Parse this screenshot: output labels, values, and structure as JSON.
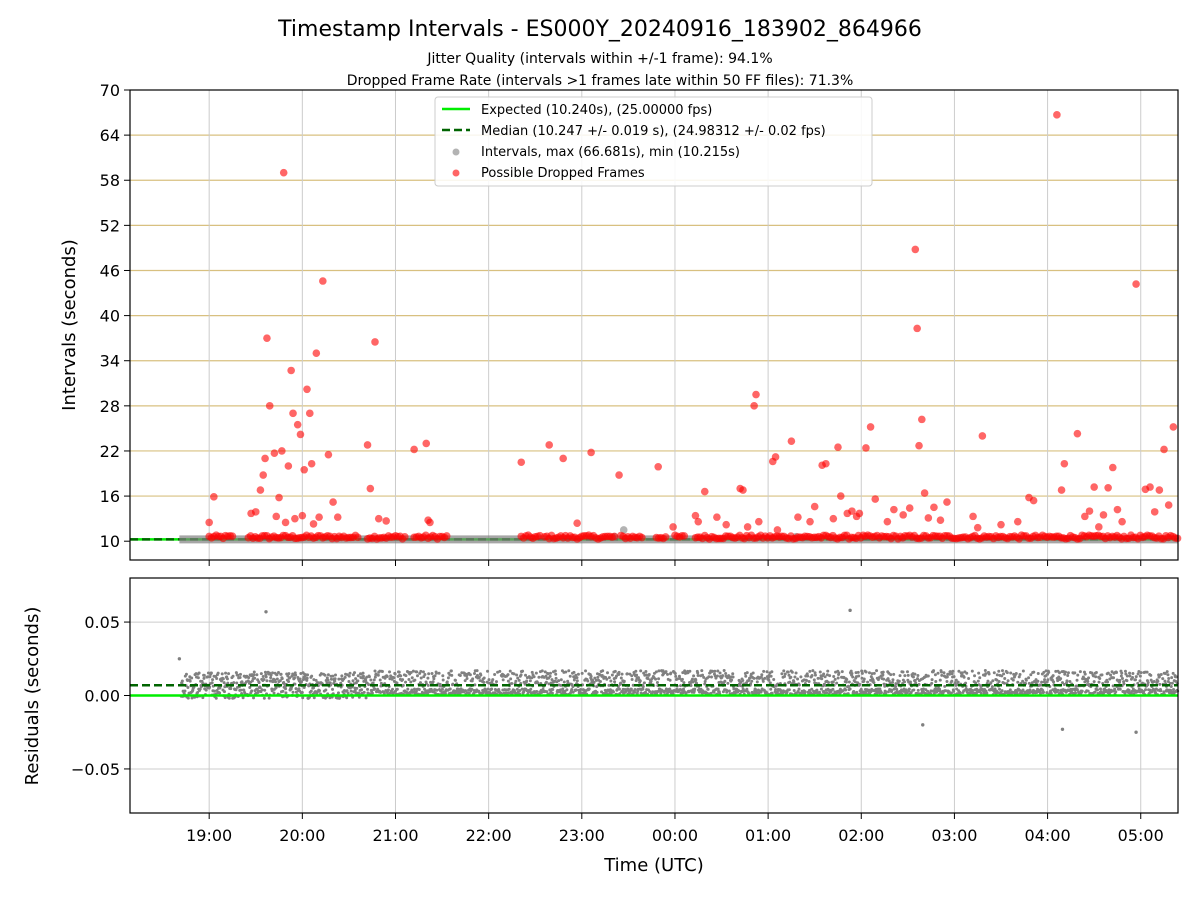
{
  "chart_data": [
    {
      "type": "scatter",
      "title": "Timestamp Intervals - ES000Y_20240916_183902_864966",
      "subtitle_1": "Jitter Quality (intervals within +/-1 frame): 94.1%",
      "subtitle_2": "Dropped Frame Rate (intervals >1 frames late within 50 FF files): 71.3%",
      "ylabel": "Intervals (seconds)",
      "ylim": [
        7.5,
        70
      ],
      "yticks": [
        "10",
        "16",
        "22",
        "28",
        "34",
        "40",
        "46",
        "52",
        "58",
        "64",
        "70"
      ],
      "xlim": [
        18.15,
        29.4
      ],
      "legend_position": "top-center",
      "legend": [
        "Expected (10.240s), (25.00000 fps)",
        "Median (10.247 +/- 0.019 s), (24.98312 +/- 0.02 fps)",
        "Intervals, max (66.681s), min (10.215s)",
        "Possible Dropped Frames"
      ],
      "expected": 10.24,
      "median": 10.247,
      "series": [
        {
          "name": "Possible Dropped Frames",
          "color": "#ff0000",
          "x": [
            19.0,
            19.05,
            19.45,
            19.5,
            19.55,
            19.58,
            19.6,
            19.62,
            19.65,
            19.7,
            19.72,
            19.75,
            19.78,
            19.8,
            19.82,
            19.85,
            19.88,
            19.9,
            19.92,
            19.95,
            19.98,
            20.0,
            20.02,
            20.05,
            20.08,
            20.1,
            20.12,
            20.15,
            20.18,
            20.22,
            20.28,
            20.33,
            20.38,
            20.7,
            20.73,
            20.78,
            20.82,
            20.9,
            21.2,
            21.33,
            21.35,
            21.37,
            22.35,
            22.65,
            22.8,
            22.95,
            23.1,
            23.4,
            23.82,
            23.98,
            24.22,
            24.25,
            24.32,
            24.45,
            24.55,
            24.7,
            24.73,
            24.78,
            24.85,
            24.87,
            24.9,
            25.05,
            25.08,
            25.1,
            25.25,
            25.32,
            25.45,
            25.5,
            25.58,
            25.62,
            25.7,
            25.75,
            25.78,
            25.85,
            25.9,
            25.95,
            25.98,
            26.05,
            26.1,
            26.15,
            26.28,
            26.35,
            26.45,
            26.52,
            26.58,
            26.6,
            26.62,
            26.65,
            26.68,
            26.72,
            26.78,
            26.85,
            26.92,
            27.2,
            27.25,
            27.3,
            27.5,
            27.68,
            27.8,
            27.85,
            28.1,
            28.15,
            28.18,
            28.32,
            28.4,
            28.45,
            28.5,
            28.55,
            28.6,
            28.65,
            28.7,
            28.75,
            28.8,
            28.95,
            29.05,
            29.1,
            29.15,
            29.2,
            29.25,
            29.3,
            29.35
          ],
          "y": [
            12.5,
            15.9,
            13.7,
            13.9,
            16.8,
            18.8,
            21.0,
            37.0,
            28.0,
            21.7,
            13.3,
            15.8,
            22.0,
            59.0,
            12.5,
            20.0,
            32.7,
            27.0,
            13.0,
            25.5,
            24.2,
            13.4,
            19.5,
            30.2,
            27.0,
            20.3,
            12.3,
            35.0,
            13.2,
            44.6,
            21.5,
            15.2,
            13.2,
            22.8,
            17.0,
            36.5,
            13.0,
            12.7,
            22.2,
            23.0,
            12.8,
            12.5,
            20.5,
            22.8,
            21.0,
            12.4,
            21.8,
            18.8,
            19.9,
            11.9,
            13.4,
            12.6,
            16.6,
            13.2,
            12.2,
            17.0,
            16.8,
            11.9,
            28.0,
            29.5,
            12.6,
            20.6,
            21.2,
            11.5,
            23.3,
            13.2,
            12.6,
            14.6,
            20.1,
            20.3,
            13.0,
            22.5,
            16.0,
            13.7,
            14.0,
            13.3,
            13.7,
            22.4,
            25.2,
            15.6,
            12.6,
            14.2,
            13.5,
            14.4,
            48.8,
            38.3,
            22.7,
            26.2,
            16.4,
            13.1,
            14.5,
            12.8,
            15.2,
            13.3,
            11.8,
            24.0,
            12.2,
            12.6,
            15.8,
            15.4,
            66.7,
            16.8,
            20.3,
            24.3,
            13.3,
            14.0,
            17.2,
            11.9,
            13.5,
            17.1,
            19.8,
            14.2,
            12.6,
            44.2,
            16.9,
            17.2,
            13.9,
            16.8,
            22.2,
            14.8,
            25.2
          ]
        },
        {
          "name": "Intervals, max (66.681s), min (10.215s)",
          "color": "#808080",
          "x": [
            23.45,
            23.35,
            25.3
          ],
          "y": [
            11.5,
            10.6,
            10.6
          ]
        }
      ]
    },
    {
      "type": "scatter",
      "ylabel": "Residuals (seconds)",
      "xlabel": "Time (UTC)",
      "ylim": [
        -0.08,
        0.08
      ],
      "yticks": [
        "−0.05",
        "0.00",
        "0.05"
      ],
      "xlim": [
        18.15,
        29.4
      ],
      "xticks": [
        {
          "value": 19.0,
          "label": "19:00"
        },
        {
          "value": 20.0,
          "label": "20:00"
        },
        {
          "value": 21.0,
          "label": "21:00"
        },
        {
          "value": 22.0,
          "label": "22:00"
        },
        {
          "value": 23.0,
          "label": "23:00"
        },
        {
          "value": 24.0,
          "label": "00:00"
        },
        {
          "value": 25.0,
          "label": "01:00"
        },
        {
          "value": 26.0,
          "label": "02:00"
        },
        {
          "value": 27.0,
          "label": "03:00"
        },
        {
          "value": 28.0,
          "label": "04:00"
        },
        {
          "value": 29.0,
          "label": "05:00"
        }
      ],
      "expected_residual": 0.0,
      "median_residual": 0.007,
      "outliers": {
        "x": [
          18.68,
          19.61,
          25.88,
          26.66,
          28.16,
          28.95
        ],
        "y": [
          0.025,
          0.057,
          0.058,
          -0.02,
          -0.023,
          -0.025
        ]
      }
    }
  ]
}
